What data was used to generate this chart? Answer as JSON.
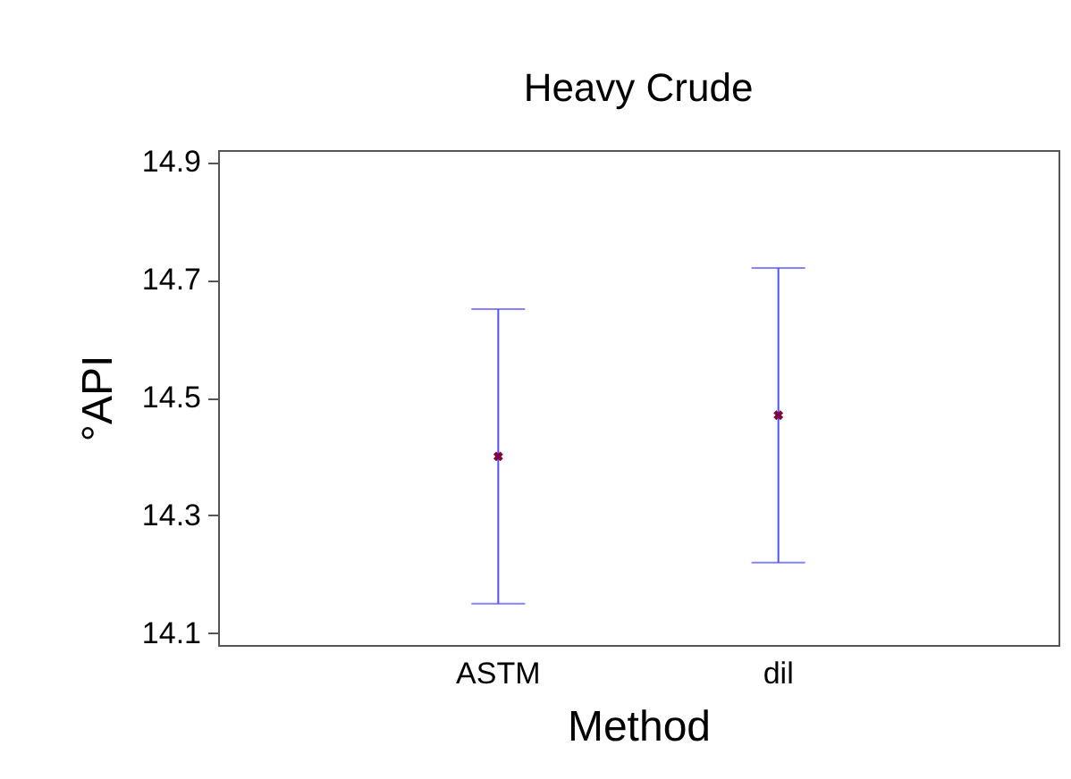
{
  "chart_data": {
    "type": "scatter",
    "title": "Heavy Crude",
    "xlabel": "Method",
    "ylabel": "°API",
    "categories": [
      "ASTM",
      "dil"
    ],
    "series": [
      {
        "color": "#800040",
        "values": [
          14.4,
          14.47
        ],
        "errors": [
          0.25,
          0.25
        ]
      }
    ],
    "ylim": [
      14.08,
      14.92
    ],
    "yticks": [
      14.1,
      14.3,
      14.5,
      14.7,
      14.9
    ],
    "marker": "cross"
  }
}
